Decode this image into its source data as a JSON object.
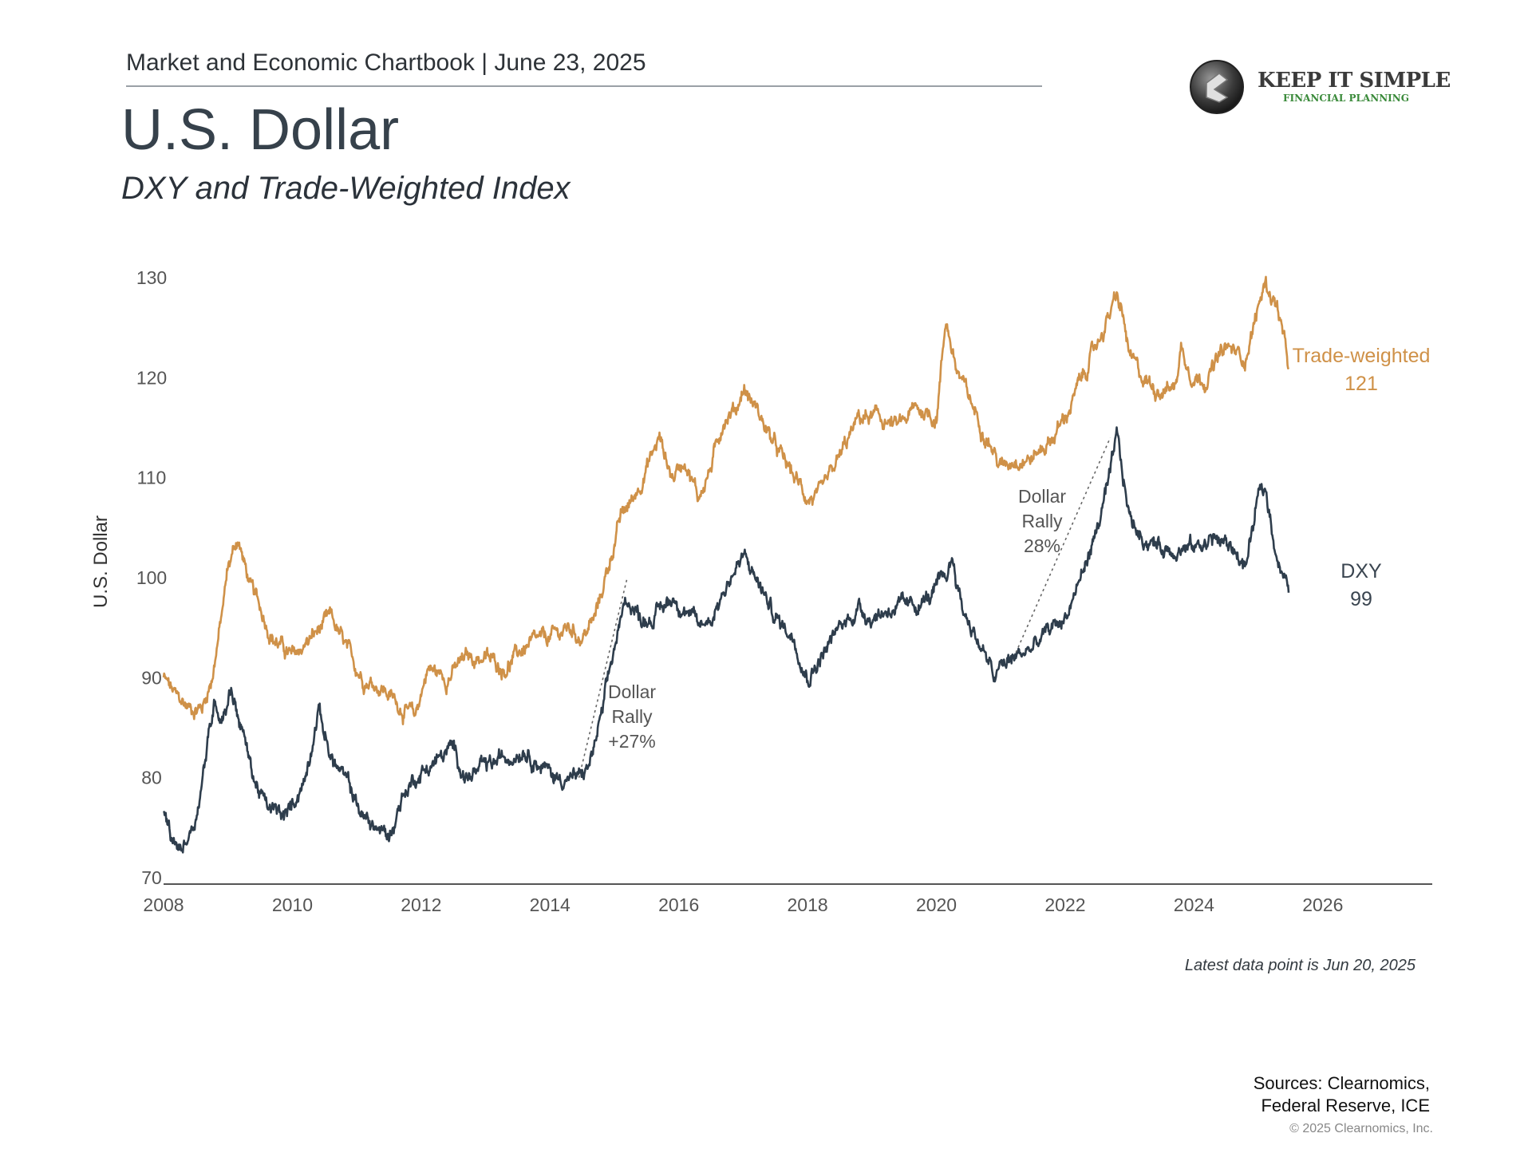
{
  "header": {
    "chartbook_label": "Market and Economic Chartbook | June 23, 2025"
  },
  "title": "U.S. Dollar",
  "subtitle": "DXY and Trade-Weighted Index",
  "logo": {
    "name": "KEEP IT SIMPLE",
    "tagline": "FINANCIAL PLANNING",
    "icon": "keep-it-simple-logo-icon"
  },
  "colors": {
    "trade_weighted": "#cf9148",
    "dxy": "#2e3d4c",
    "axis": "#555555",
    "tick_label": "#555555"
  },
  "chart_data": {
    "type": "line",
    "ylabel": "U.S. Dollar",
    "xlabel": "",
    "ylim": [
      70,
      130
    ],
    "xlim": [
      2008,
      2027.7
    ],
    "yticks": [
      "130",
      "120",
      "110",
      "100",
      "90",
      "80",
      "70"
    ],
    "xticks": [
      "2008",
      "2010",
      "2012",
      "2014",
      "2016",
      "2018",
      "2020",
      "2022",
      "2024",
      "2026"
    ],
    "series": [
      {
        "name": "Trade-weighted",
        "label_name": "Trade-weighted",
        "label_value": "121",
        "color": "#cf9148",
        "x": [
          2008.0,
          2008.2,
          2008.4,
          2008.6,
          2008.75,
          2008.9,
          2009.0,
          2009.15,
          2009.35,
          2009.5,
          2009.7,
          2010.0,
          2010.3,
          2010.6,
          2010.9,
          2011.1,
          2011.4,
          2011.7,
          2011.9,
          2012.1,
          2012.4,
          2012.7,
          2013.0,
          2013.3,
          2013.6,
          2014.0,
          2014.3,
          2014.5,
          2014.7,
          2014.9,
          2015.1,
          2015.3,
          2015.5,
          2015.7,
          2015.9,
          2016.1,
          2016.3,
          2016.5,
          2016.7,
          2016.9,
          2017.0,
          2017.2,
          2017.5,
          2017.8,
          2018.0,
          2018.2,
          2018.5,
          2018.8,
          2019.1,
          2019.4,
          2019.7,
          2020.0,
          2020.15,
          2020.3,
          2020.5,
          2020.8,
          2021.0,
          2021.2,
          2021.5,
          2021.8,
          2022.0,
          2022.2,
          2022.4,
          2022.6,
          2022.8,
          2022.9,
          2023.0,
          2023.2,
          2023.4,
          2023.7,
          2023.8,
          2024.0,
          2024.2,
          2024.5,
          2024.8,
          2025.0,
          2025.1,
          2025.3,
          2025.47
        ],
        "values": [
          90,
          88,
          87,
          87,
          90,
          96,
          101,
          104,
          99,
          97,
          94,
          92,
          94,
          96,
          92,
          90,
          89,
          87,
          86,
          91,
          90,
          92,
          92,
          91,
          93,
          94,
          95,
          94,
          96,
          101,
          106,
          108,
          111,
          114,
          110,
          112,
          108,
          111,
          116,
          117,
          119,
          117,
          113,
          110,
          108,
          108,
          112,
          116,
          116,
          115,
          117,
          116,
          126,
          121,
          118,
          114,
          111,
          112,
          112,
          114,
          116,
          119,
          122,
          125,
          128,
          126,
          122,
          120,
          119,
          119,
          123,
          120,
          120,
          123,
          122,
          127,
          129.5,
          127,
          121
        ]
      },
      {
        "name": "DXY",
        "label_name": "DXY",
        "label_value": "99",
        "color": "#2e3d4c",
        "x": [
          2008.0,
          2008.15,
          2008.3,
          2008.5,
          2008.65,
          2008.8,
          2008.9,
          2009.05,
          2009.25,
          2009.4,
          2009.6,
          2009.9,
          2010.2,
          2010.4,
          2010.6,
          2010.9,
          2011.1,
          2011.3,
          2011.5,
          2011.7,
          2011.9,
          2012.1,
          2012.3,
          2012.5,
          2012.7,
          2013.0,
          2013.3,
          2013.6,
          2013.9,
          2014.1,
          2014.3,
          2014.45,
          2014.6,
          2014.8,
          2015.0,
          2015.2,
          2015.4,
          2015.6,
          2015.9,
          2016.1,
          2016.3,
          2016.5,
          2016.8,
          2017.0,
          2017.2,
          2017.5,
          2017.8,
          2018.0,
          2018.2,
          2018.5,
          2018.8,
          2019.0,
          2019.3,
          2019.6,
          2019.9,
          2020.15,
          2020.25,
          2020.4,
          2020.7,
          2020.9,
          2021.0,
          2021.2,
          2021.5,
          2021.8,
          2022.0,
          2022.3,
          2022.5,
          2022.7,
          2022.8,
          2023.0,
          2023.2,
          2023.5,
          2023.8,
          2024.0,
          2024.3,
          2024.6,
          2024.8,
          2025.0,
          2025.1,
          2025.3,
          2025.47
        ],
        "values": [
          76,
          73,
          73,
          76,
          82,
          88,
          86,
          89,
          84,
          80,
          77,
          76,
          80,
          87,
          82,
          79,
          76,
          75,
          74,
          78,
          80,
          81,
          82,
          83,
          80,
          81,
          82,
          83,
          81,
          80,
          80,
          80,
          81,
          86,
          93,
          98,
          96,
          96,
          98,
          97,
          95,
          96,
          100,
          102,
          100,
          96,
          94,
          90,
          92,
          95,
          97,
          96,
          97,
          97,
          98,
          100,
          102,
          97,
          93,
          90,
          91,
          92,
          93,
          95,
          96,
          101,
          105,
          110,
          114,
          106,
          104,
          103,
          103,
          103,
          104,
          103,
          101,
          108,
          109,
          102,
          98.5
        ]
      }
    ],
    "annotations": [
      {
        "id": "rally-2014",
        "lines": [
          "Dollar",
          "Rally",
          "+27%"
        ],
        "from": [
          2014.45,
          80
        ],
        "to": [
          2015.2,
          100
        ]
      },
      {
        "id": "rally-2021",
        "lines": [
          "Dollar",
          "Rally",
          "28%"
        ],
        "from": [
          2021.2,
          92
        ],
        "to": [
          2022.7,
          114
        ]
      }
    ]
  },
  "footer": {
    "latest_data_note": "Latest data point is Jun 20, 2025",
    "sources_line1": "Sources: Clearnomics,",
    "sources_line2": "Federal Reserve, ICE",
    "copyright": "© 2025 Clearnomics, Inc."
  }
}
